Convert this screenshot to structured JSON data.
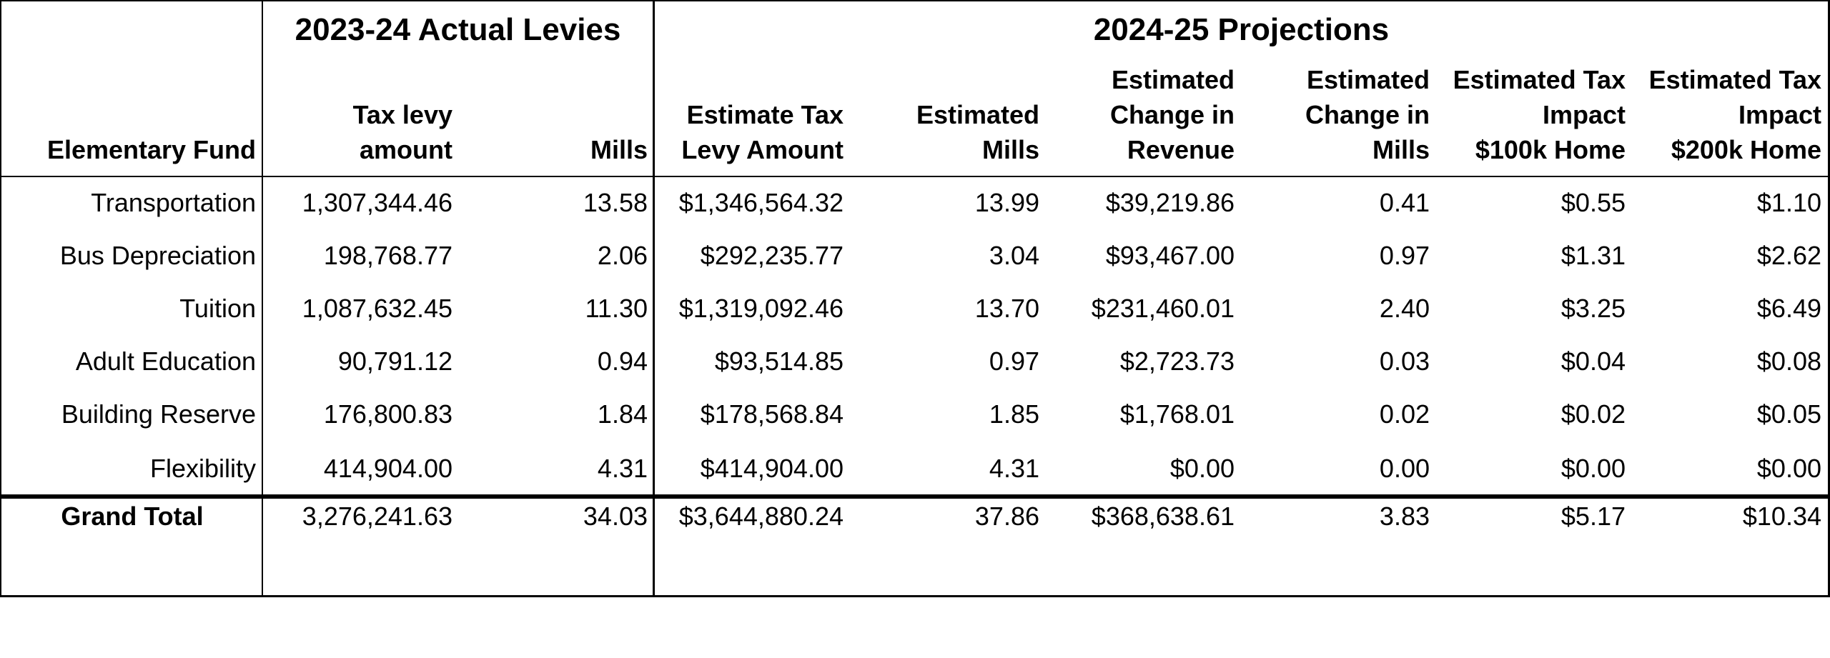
{
  "group_titles": {
    "actual": "2023-24 Actual Levies",
    "projections": "2024-25 Projections"
  },
  "columns": [
    {
      "key": "fund",
      "lines": [
        "Elementary Fund"
      ]
    },
    {
      "key": "levy_amount",
      "lines": [
        "Tax levy",
        "amount"
      ]
    },
    {
      "key": "mills",
      "lines": [
        "Mills"
      ]
    },
    {
      "key": "est_levy",
      "lines": [
        "Estimate Tax",
        "Levy Amount"
      ]
    },
    {
      "key": "est_mills",
      "lines": [
        "Estimated",
        "Mills"
      ]
    },
    {
      "key": "change_revenue",
      "lines": [
        "Estimated",
        "Change in",
        "Revenue"
      ]
    },
    {
      "key": "change_mills",
      "lines": [
        "Estimated",
        "Change in",
        "Mills"
      ]
    },
    {
      "key": "impact_100k",
      "lines": [
        "Estimated Tax",
        "Impact",
        "$100k Home"
      ]
    },
    {
      "key": "impact_200k",
      "lines": [
        "Estimated Tax",
        "Impact",
        "$200k Home"
      ]
    }
  ],
  "rows": [
    {
      "fund": "Transportation",
      "levy_amount": "1,307,344.46",
      "mills": "13.58",
      "est_levy": "$1,346,564.32",
      "est_mills": "13.99",
      "change_revenue": "$39,219.86",
      "change_mills": "0.41",
      "impact_100k": "$0.55",
      "impact_200k": "$1.10"
    },
    {
      "fund": "Bus Depreciation",
      "levy_amount": "198,768.77",
      "mills": "2.06",
      "est_levy": "$292,235.77",
      "est_mills": "3.04",
      "change_revenue": "$93,467.00",
      "change_mills": "0.97",
      "impact_100k": "$1.31",
      "impact_200k": "$2.62"
    },
    {
      "fund": "Tuition",
      "levy_amount": "1,087,632.45",
      "mills": "11.30",
      "est_levy": "$1,319,092.46",
      "est_mills": "13.70",
      "change_revenue": "$231,460.01",
      "change_mills": "2.40",
      "impact_100k": "$3.25",
      "impact_200k": "$6.49"
    },
    {
      "fund": "Adult Education",
      "levy_amount": "90,791.12",
      "mills": "0.94",
      "est_levy": "$93,514.85",
      "est_mills": "0.97",
      "change_revenue": "$2,723.73",
      "change_mills": "0.03",
      "impact_100k": "$0.04",
      "impact_200k": "$0.08"
    },
    {
      "fund": "Building Reserve",
      "levy_amount": "176,800.83",
      "mills": "1.84",
      "est_levy": "$178,568.84",
      "est_mills": "1.85",
      "change_revenue": "$1,768.01",
      "change_mills": "0.02",
      "impact_100k": "$0.02",
      "impact_200k": "$0.05"
    },
    {
      "fund": "Flexibility",
      "levy_amount": "414,904.00",
      "mills": "4.31",
      "est_levy": "$414,904.00",
      "est_mills": "4.31",
      "change_revenue": "$0.00",
      "change_mills": "0.00",
      "impact_100k": "$0.00",
      "impact_200k": "$0.00"
    }
  ],
  "total": {
    "fund": "Grand Total",
    "levy_amount": "3,276,241.63",
    "mills": "34.03",
    "est_levy": "$3,644,880.24",
    "est_mills": "37.86",
    "change_revenue": "$368,638.61",
    "change_mills": "3.83",
    "impact_100k": "$5.17",
    "impact_200k": "$10.34"
  }
}
